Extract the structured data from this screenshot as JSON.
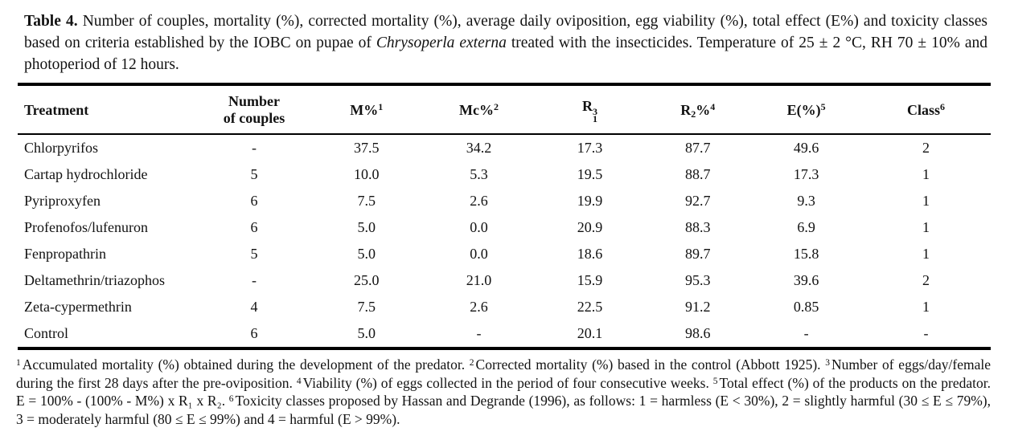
{
  "page": {
    "background": "#ffffff",
    "text_color": "#121212",
    "rule_color": "#000000"
  },
  "caption": {
    "label": "Table 4.",
    "before_italic": " Number of couples, mortality (%), corrected mortality (%), average daily oviposition, egg viability (%), total effect (E%) and toxicity classes based on criteria established by the IOBC on pupae of ",
    "species": "Chrysoperla externa",
    "after_italic": " treated with the insecticides. Temperature of 25 ± 2 °C, RH 70 ± 10% and photoperiod of 12 hours."
  },
  "table": {
    "headers": {
      "treatment": "Treatment",
      "couples_line1": "Number",
      "couples_line2": "of couples",
      "m_base": "M%",
      "m_sup": "1",
      "mc_base": "Mc%",
      "mc_sup": "2",
      "r1_base": "R",
      "r1_sub": "1",
      "r1_sup": "3",
      "r2_base": "R",
      "r2_sub": "2",
      "r2_pct": "%",
      "r2_sup": "4",
      "e_base": "E(%)",
      "e_sup": "5",
      "class_base": "Class",
      "class_sup": "6"
    },
    "rows": [
      [
        "Chlorpyrifos",
        "-",
        "37.5",
        "34.2",
        "17.3",
        "87.7",
        "49.6",
        "2"
      ],
      [
        "Cartap hydrochloride",
        "5",
        "10.0",
        "5.3",
        "19.5",
        "88.7",
        "17.3",
        "1"
      ],
      [
        "Pyriproxyfen",
        "6",
        "7.5",
        "2.6",
        "19.9",
        "92.7",
        "9.3",
        "1"
      ],
      [
        "Profenofos/lufenuron",
        "6",
        "5.0",
        "0.0",
        "20.9",
        "88.3",
        "6.9",
        "1"
      ],
      [
        "Fenpropathrin",
        "5",
        "5.0",
        "0.0",
        "18.6",
        "89.7",
        "15.8",
        "1"
      ],
      [
        "Deltamethrin/triazophos",
        "-",
        "25.0",
        "21.0",
        "15.9",
        "95.3",
        "39.6",
        "2"
      ],
      [
        "Zeta-cypermethrin",
        "4",
        "7.5",
        "2.6",
        "22.5",
        "91.2",
        "0.85",
        "1"
      ],
      [
        "Control",
        "6",
        "5.0",
        "-",
        "20.1",
        "98.6",
        "-",
        "-"
      ]
    ]
  },
  "footnotes": [
    {
      "marker": "1",
      "text": "Accumulated mortality (%) obtained during the development of the predator. "
    },
    {
      "marker": "2",
      "text": "Corrected mortality (%) based in the control (Abbott 1925). "
    },
    {
      "marker": "3",
      "text": "Number of eggs/day/female during the first 28 days after the pre-oviposition. "
    },
    {
      "marker": "4",
      "text": "Viability (%) of eggs collected in the period of four consecutive weeks. "
    },
    {
      "marker": "5",
      "text": "Total effect (%) of the products on the predator. E = 100% - (100% - M%) x R₁ x R₂. "
    },
    {
      "marker": "6",
      "text": "Toxicity classes proposed by Hassan and Degrande (1996), as follows: 1 = harmless (E < 30%), 2 = slightly harmful (30 ≤ E ≤ 79%), 3 = moderately harmful (80 ≤ E ≤ 99%) and 4 = harmful (E > 99%)."
    }
  ]
}
